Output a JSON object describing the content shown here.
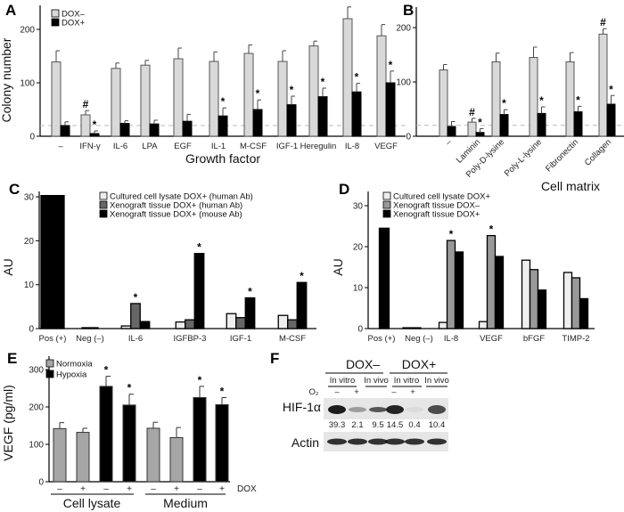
{
  "chart_data": [
    {
      "panel_label": "A",
      "type": "bar",
      "categories": [
        "–",
        "IFN-γ",
        "IL-6",
        "LPA",
        "EGF",
        "IL-1",
        "M-CSF",
        "IGF-1",
        "Heregulin",
        "IL-8",
        "VEGF"
      ],
      "xlabel": "Growth factor",
      "ylabel": "Colony number",
      "ylim": [
        0,
        240
      ],
      "yticks": [
        0,
        100,
        200
      ],
      "reference_line": 20,
      "legend": "top-left",
      "series": [
        {
          "name": "DOX–",
          "color": "#d9d9d9",
          "values": [
            139,
            40,
            127,
            133,
            145,
            140,
            155,
            140,
            169,
            220,
            188
          ],
          "errors": [
            21,
            8,
            10,
            9,
            20,
            18,
            16,
            20,
            9,
            22,
            21
          ],
          "marks": [
            "",
            "#",
            "",
            "",
            "",
            "",
            "",
            "",
            "",
            "",
            ""
          ]
        },
        {
          "name": "DOX+",
          "color": "#000000",
          "values": [
            20,
            5,
            24,
            23,
            28,
            38,
            50,
            59,
            74,
            83,
            100
          ],
          "errors": [
            7,
            5,
            5,
            7,
            13,
            15,
            18,
            16,
            16,
            16,
            22
          ],
          "marks": [
            "",
            "*",
            "",
            "",
            "",
            "*",
            "*",
            "*",
            "*",
            "*",
            "*"
          ]
        }
      ]
    },
    {
      "panel_label": "B",
      "type": "bar",
      "categories": [
        "–",
        "Laminin",
        "Poly-D-lysine",
        "Poly-L-lysine",
        "Fibronectin",
        "Collagen"
      ],
      "xlabel": "Cell matrix",
      "ylim": [
        0,
        240
      ],
      "yticks": [
        0,
        100,
        200
      ],
      "reference_line": 20,
      "series": [
        {
          "color": "#d9d9d9",
          "values": [
            122,
            26,
            137,
            145,
            137,
            188
          ],
          "errors": [
            10,
            7,
            16,
            19,
            17,
            10
          ],
          "marks": [
            "",
            "#",
            "",
            "",
            "",
            "#"
          ]
        },
        {
          "color": "#000000",
          "values": [
            18,
            7,
            40,
            42,
            45,
            59
          ],
          "errors": [
            9,
            7,
            9,
            12,
            10,
            16
          ],
          "marks": [
            "",
            "*",
            "*",
            "*",
            "*",
            "*"
          ]
        }
      ]
    },
    {
      "panel_label": "C",
      "type": "bar",
      "categories": [
        "Pos (+)",
        "Neg (–)",
        "IL-6",
        "IGFBP-3",
        "IGF-1",
        "M-CSF"
      ],
      "ylabel": "AU",
      "ylim": [
        0,
        32
      ],
      "yticks": [
        0,
        10,
        20,
        30
      ],
      "legend": "top",
      "series": [
        {
          "name": "Cultured cell lysate DOX+ (human Ab)",
          "color": "#eeeeee",
          "values": [
            null,
            null,
            0.6,
            1.5,
            3.4,
            3.0
          ],
          "marks": [
            "",
            "",
            "",
            "",
            "",
            ""
          ]
        },
        {
          "name": "Xenograft tissue DOX+ (human Ab)",
          "color": "#666666",
          "values": [
            null,
            null,
            5.7,
            2.0,
            2.5,
            2.0
          ],
          "marks": [
            "",
            "",
            "*",
            "",
            "",
            ""
          ]
        },
        {
          "name": "Xenograft tissue DOX+ (mouse Ab)",
          "color": "#000000",
          "values": [
            30.3,
            0.2,
            1.6,
            17.1,
            7.0,
            10.5
          ],
          "marks": [
            "",
            "",
            "",
            "*",
            "*",
            "*"
          ]
        }
      ]
    },
    {
      "panel_label": "D",
      "type": "bar",
      "categories": [
        "Pos (+)",
        "Neg (–)",
        "IL-8",
        "VEGF",
        "bFGF",
        "TIMP-2"
      ],
      "ylabel": "AU",
      "ylim": [
        0,
        32
      ],
      "yticks": [
        0,
        10,
        20,
        30
      ],
      "legend": "top",
      "series": [
        {
          "name": "Cultured cell lysate DOX+",
          "color": "#eeeeee",
          "values": [
            null,
            null,
            1.5,
            1.7,
            16.7,
            13.7
          ],
          "marks": [
            "",
            "",
            "",
            "",
            "",
            ""
          ]
        },
        {
          "name": "Xenograft tissue DOX–",
          "color": "#999999",
          "values": [
            null,
            null,
            21.5,
            22.7,
            14.4,
            12.4
          ],
          "marks": [
            "",
            "",
            "*",
            "*",
            "",
            ""
          ]
        },
        {
          "name": "Xenograft tissue DOX+",
          "color": "#000000",
          "values": [
            24.5,
            0.2,
            18.7,
            17.6,
            9.4,
            7.3
          ],
          "marks": [
            "",
            "",
            "",
            "",
            "",
            ""
          ]
        }
      ]
    },
    {
      "panel_label": "E",
      "type": "bar",
      "groups": [
        "Cell lysate",
        "Medium"
      ],
      "dox_label": "DOX",
      "dox_levels": [
        "–",
        "+"
      ],
      "ylabel": "VEGF (pg/ml)",
      "ylim": [
        0,
        300
      ],
      "yticks": [
        0,
        100,
        200,
        300
      ],
      "legend": "top-left",
      "series": [
        {
          "name": "Normoxia",
          "color": "#a6a6a6",
          "values": [
            142,
            132,
            143,
            118
          ],
          "errors": [
            16,
            11,
            16,
            27
          ],
          "marks": [
            "",
            "",
            "",
            ""
          ]
        },
        {
          "name": "Hypoxia",
          "color": "#000000",
          "values": [
            255,
            205,
            225,
            206
          ],
          "errors": [
            27,
            29,
            30,
            19
          ],
          "marks": [
            "*",
            "*",
            "*",
            "*"
          ]
        }
      ]
    }
  ],
  "blot": {
    "panel_label": "F",
    "conditions": [
      "DOX–",
      "DOX+"
    ],
    "subheaders": [
      "In vitro",
      "In vivo",
      "In vitro",
      "In vivo"
    ],
    "o2_label": "O₂",
    "o2_levels": [
      "–",
      "+",
      "–",
      "+"
    ],
    "rows": [
      {
        "label": "HIF-1α",
        "quantification": [
          "39.3",
          "2.1",
          "9.5",
          "14.5",
          "0.4",
          "10.4"
        ]
      },
      {
        "label": "Actin"
      }
    ]
  }
}
